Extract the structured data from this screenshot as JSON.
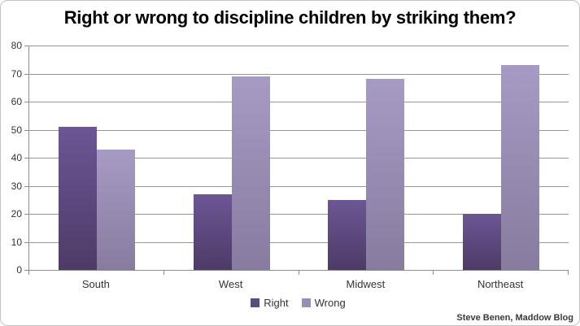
{
  "chart_data": {
    "type": "bar",
    "title": "Right or wrong to discipline children by striking them?",
    "categories": [
      "South",
      "West",
      "Midwest",
      "Northeast"
    ],
    "series": [
      {
        "name": "Right",
        "values": [
          51,
          27,
          25,
          20
        ],
        "color_top": "#6c5695",
        "color_bottom": "#4d3b66",
        "legend_color": "#5d4a7e"
      },
      {
        "name": "Wrong",
        "values": [
          43,
          69,
          68,
          73
        ],
        "color_top": "#a79bc5",
        "color_bottom": "#877b9e",
        "legend_color": "#9a8eb8"
      }
    ],
    "xlabel": "",
    "ylabel": "",
    "ylim": [
      0,
      80
    ],
    "ytick_step": 10,
    "grid": "horizontal",
    "legend_position": "bottom"
  },
  "attribution": "Steve Benen, Maddow Blog",
  "colors": {
    "gridline": "#969696",
    "axis": "#8c8c8c",
    "background": "#ffffff",
    "title_text": "#000000",
    "axis_text": "#333333",
    "border": "#c3c3c3"
  }
}
